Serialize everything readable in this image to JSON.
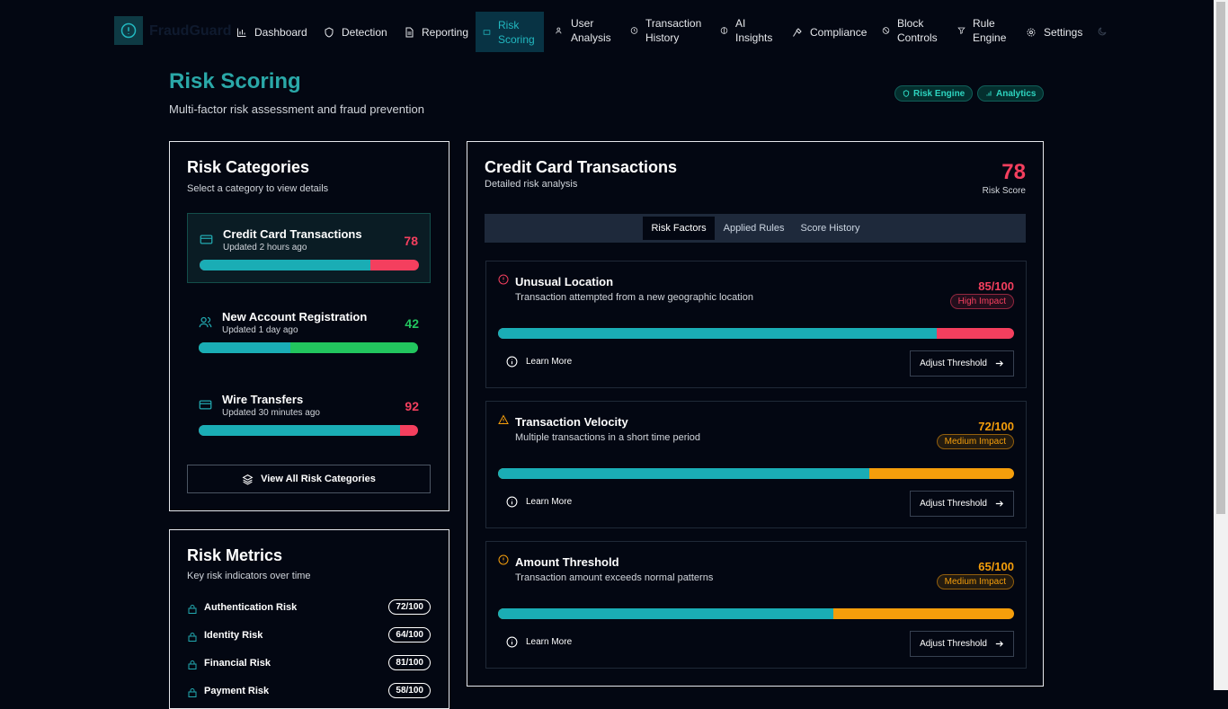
{
  "nav": {
    "brand": "FraudGuard",
    "items": [
      "Dashboard",
      "Detection",
      "Reporting",
      "Risk Scoring",
      "User Analysis",
      "Transaction History",
      "AI Insights",
      "Compliance",
      "Block Controls",
      "Rule Engine",
      "Settings"
    ]
  },
  "header": {
    "title": "Risk Scoring",
    "subtitle": "Multi-factor risk assessment and fraud prevention",
    "badges": [
      "Risk Engine",
      "Analytics"
    ]
  },
  "categories": {
    "title": "Risk Categories",
    "subtitle": "Select a category to view details",
    "items": [
      {
        "name": "Credit Card Transactions",
        "updated": "Updated 2 hours ago",
        "score": 78
      },
      {
        "name": "New Account Registration",
        "updated": "Updated 1 day ago",
        "score": 42
      },
      {
        "name": "Wire Transfers",
        "updated": "Updated 30 minutes ago",
        "score": 92
      }
    ],
    "view_all": "View All Risk Categories"
  },
  "metrics": {
    "title": "Risk Metrics",
    "subtitle": "Key risk indicators over time",
    "items": [
      {
        "name": "Authentication Risk",
        "value": "72/100"
      },
      {
        "name": "Identity Risk",
        "value": "64/100"
      },
      {
        "name": "Financial Risk",
        "value": "81/100"
      },
      {
        "name": "Payment Risk",
        "value": "58/100"
      }
    ]
  },
  "detail": {
    "title": "Credit Card Transactions",
    "subtitle": "Detailed risk analysis",
    "score": 78,
    "score_caption": "Risk Score",
    "tabs": [
      "Risk Factors",
      "Applied Rules",
      "Score History"
    ],
    "factors": [
      {
        "title": "Unusual Location",
        "description": "Transaction attempted from a new geographic location",
        "score": 85,
        "score_label": "85/100",
        "impact": "High Impact",
        "learn_more": "Learn More",
        "adjust": "Adjust Threshold"
      },
      {
        "title": "Transaction Velocity",
        "description": "Multiple transactions in a short time period",
        "score": 72,
        "score_label": "72/100",
        "impact": "Medium Impact",
        "learn_more": "Learn More",
        "adjust": "Adjust Threshold"
      },
      {
        "title": "Amount Threshold",
        "description": "Transaction amount exceeds normal patterns",
        "score": 65,
        "score_label": "65/100",
        "impact": "Medium Impact",
        "learn_more": "Learn More",
        "adjust": "Adjust Threshold"
      }
    ]
  }
}
